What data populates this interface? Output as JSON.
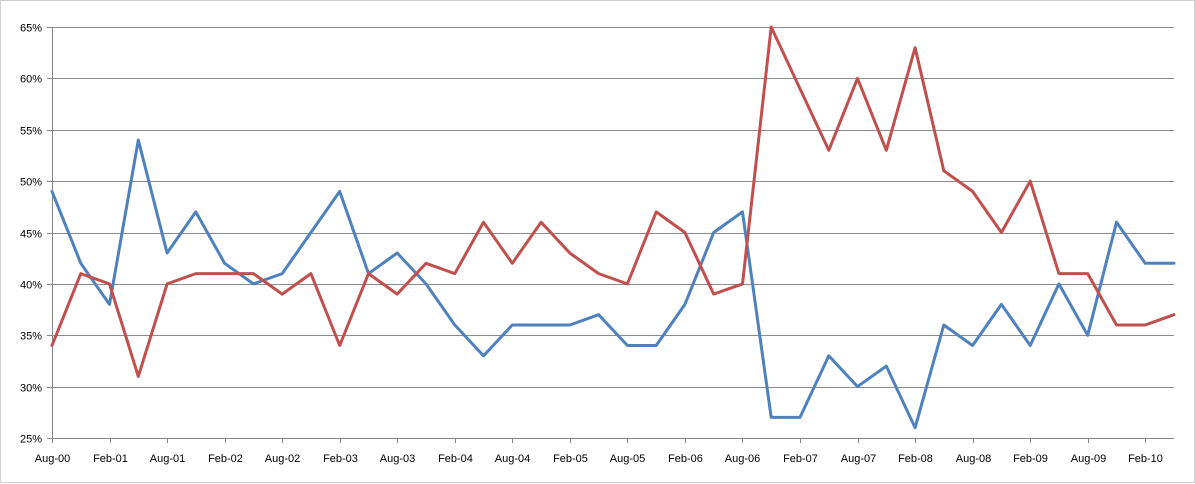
{
  "chart_data": {
    "type": "line",
    "title": "",
    "xlabel": "",
    "ylabel": "",
    "ylim": [
      25,
      65
    ],
    "y_tick_values": [
      25,
      30,
      35,
      40,
      45,
      50,
      55,
      60,
      65
    ],
    "y_tick_labels": [
      "25%",
      "30%",
      "35%",
      "40%",
      "45%",
      "50%",
      "55%",
      "60%",
      "65%"
    ],
    "grid": true,
    "legend": "none",
    "x": [
      "Aug-00",
      "Nov-00",
      "Feb-01",
      "May-01",
      "Aug-01",
      "Nov-01",
      "Feb-02",
      "May-02",
      "Aug-02",
      "Nov-02",
      "Feb-03",
      "May-03",
      "Aug-03",
      "Nov-03",
      "Feb-04",
      "May-04",
      "Aug-04",
      "Nov-04",
      "Feb-05",
      "May-05",
      "Aug-05",
      "Nov-05",
      "Feb-06",
      "May-06",
      "Aug-06",
      "Nov-06",
      "Feb-07",
      "May-07",
      "Aug-07",
      "Nov-07",
      "Feb-08",
      "May-08",
      "Aug-08",
      "Nov-08",
      "Feb-09",
      "May-09",
      "Aug-09",
      "Nov-09",
      "Feb-10",
      "May-10"
    ],
    "x_tick_labels": [
      "Aug-00",
      "Feb-01",
      "Aug-01",
      "Feb-02",
      "Aug-02",
      "Feb-03",
      "Aug-03",
      "Feb-04",
      "Aug-04",
      "Feb-05",
      "Aug-05",
      "Feb-06",
      "Aug-06",
      "Feb-07",
      "Aug-07",
      "Feb-08",
      "Aug-08",
      "Feb-09",
      "Aug-09",
      "Feb-10"
    ],
    "series": [
      {
        "color": "#4f81bd",
        "values": [
          49,
          42,
          38,
          54,
          43,
          47,
          42,
          40,
          41,
          45,
          49,
          41,
          43,
          40,
          36,
          33,
          36,
          36,
          36,
          37,
          34,
          34,
          38,
          45,
          47,
          27,
          27,
          33,
          30,
          32,
          26,
          36,
          34,
          38,
          34,
          40,
          35,
          46,
          42,
          42
        ]
      },
      {
        "color": "#c0504d",
        "values": [
          34,
          41,
          40,
          31,
          40,
          41,
          41,
          41,
          39,
          41,
          34,
          41,
          39,
          42,
          41,
          46,
          42,
          46,
          43,
          41,
          40,
          47,
          45,
          39,
          40,
          65,
          59,
          53,
          60,
          53,
          63,
          51,
          49,
          45,
          50,
          41,
          41,
          36,
          36,
          37
        ]
      }
    ]
  }
}
